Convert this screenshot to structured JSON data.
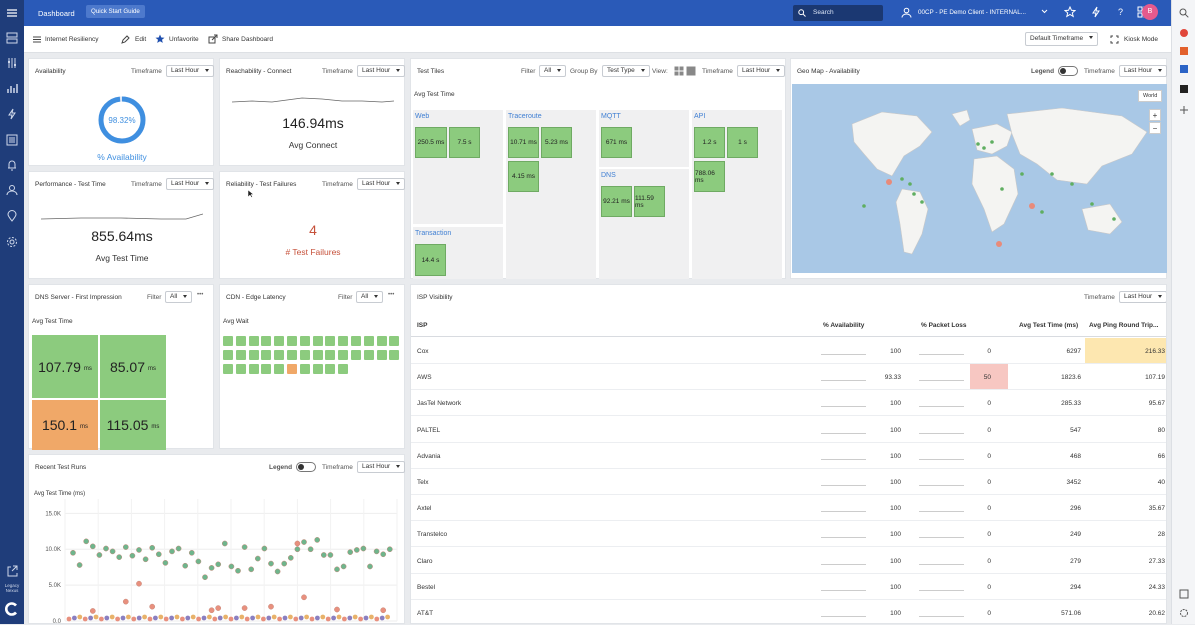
{
  "header": {
    "app_title": "Dashboard",
    "quick_start_label": "Quick Start Guide",
    "search_placeholder": "Search",
    "account_label": "00CP - PE Demo Client - INTERNAL...",
    "avatar_initial": "B",
    "brand_color": "#2a5ab8"
  },
  "toolbar": {
    "dashboard_name": "Internet Resiliency",
    "edit_label": "Edit",
    "unfavorite_label": "Unfavorite",
    "share_label": "Share Dashboard",
    "default_timeframe_label": "Default Timeframe",
    "kiosk_label": "Kiosk Mode"
  },
  "common": {
    "timeframe_label": "Timeframe",
    "timeframe_value": "Last Hour",
    "filter_label": "Filter",
    "filter_value": "All",
    "legend_label": "Legend",
    "more_glyph": "•••"
  },
  "availability": {
    "title": "Availability",
    "value": "98.32%",
    "value_fraction": 0.9832,
    "label": "% Availability"
  },
  "reachability": {
    "title": "Reachability - Connect",
    "value": "146.94ms",
    "label": "Avg Connect"
  },
  "performance": {
    "title": "Performance - Test Time",
    "value": "855.64ms",
    "label": "Avg Test Time"
  },
  "reliability": {
    "title": "Reliability - Test Failures",
    "value": "4",
    "label": "# Test Failures"
  },
  "test_tiles": {
    "title": "Test Tiles",
    "group_by_label": "Group By",
    "group_by_value": "Test Type",
    "view_label": "View:",
    "metric_label": "Avg Test Time",
    "groups": [
      {
        "name": "Web",
        "tiles": [
          "250.5 ms",
          "7.5 s"
        ]
      },
      {
        "name": "Traceroute",
        "tiles": [
          "10.71 ms",
          "5.23 ms",
          "4.15 ms"
        ]
      },
      {
        "name": "MQTT",
        "tiles": [
          "671 ms"
        ]
      },
      {
        "name": "API",
        "tiles": [
          "1.2 s",
          "1 s",
          "788.06 ms"
        ]
      },
      {
        "name": "DNS",
        "tiles": [
          "92.21 ms",
          "111.59 ms"
        ]
      },
      {
        "name": "Transaction",
        "tiles": [
          "14.4 s"
        ]
      }
    ]
  },
  "geo_map": {
    "title": "Geo Map - Availability",
    "region_button": "World",
    "zoom_in": "+",
    "zoom_out": "−"
  },
  "dns_server": {
    "title": "DNS Server - First Impression",
    "metric_label": "Avg Test Time",
    "unit": "ms",
    "tiles": [
      {
        "value": "107.79",
        "color": "#8ccb7e"
      },
      {
        "value": "85.07",
        "color": "#8ccb7e"
      },
      {
        "value": "150.1",
        "color": "#f0a868"
      },
      {
        "value": "115.05",
        "color": "#8ccb7e"
      }
    ]
  },
  "cdn": {
    "title": "CDN - Edge Latency",
    "metric_label": "Avg Wait",
    "square_count": 38,
    "orange_index": 33
  },
  "isp": {
    "title": "ISP Visibility",
    "columns": [
      "ISP",
      "% Availability",
      "% Packet Loss",
      "Avg Test Time (ms)",
      "Avg Ping Round Trip..."
    ],
    "rows": [
      {
        "isp": "Cox",
        "availability": "100",
        "packet_loss": "0",
        "test_time": "6297",
        "ping": "216.33",
        "ping_highlight": true,
        "loss_highlight": false
      },
      {
        "isp": "AWS",
        "availability": "93.33",
        "packet_loss": "50",
        "test_time": "1823.6",
        "ping": "107.19",
        "ping_highlight": false,
        "loss_highlight": true
      },
      {
        "isp": "JasTel Network",
        "availability": "100",
        "packet_loss": "0",
        "test_time": "285.33",
        "ping": "95.67",
        "ping_highlight": false,
        "loss_highlight": false
      },
      {
        "isp": "PALTEL",
        "availability": "100",
        "packet_loss": "0",
        "test_time": "547",
        "ping": "80",
        "ping_highlight": false,
        "loss_highlight": false
      },
      {
        "isp": "Advania",
        "availability": "100",
        "packet_loss": "0",
        "test_time": "468",
        "ping": "66",
        "ping_highlight": false,
        "loss_highlight": false
      },
      {
        "isp": "Telx",
        "availability": "100",
        "packet_loss": "0",
        "test_time": "3452",
        "ping": "40",
        "ping_highlight": false,
        "loss_highlight": false
      },
      {
        "isp": "Axtel",
        "availability": "100",
        "packet_loss": "0",
        "test_time": "296",
        "ping": "35.67",
        "ping_highlight": false,
        "loss_highlight": false
      },
      {
        "isp": "Transtelco",
        "availability": "100",
        "packet_loss": "0",
        "test_time": "249",
        "ping": "28",
        "ping_highlight": false,
        "loss_highlight": false
      },
      {
        "isp": "Claro",
        "availability": "100",
        "packet_loss": "0",
        "test_time": "279",
        "ping": "27.33",
        "ping_highlight": false,
        "loss_highlight": false
      },
      {
        "isp": "Bestel",
        "availability": "100",
        "packet_loss": "0",
        "test_time": "294",
        "ping": "24.33",
        "ping_highlight": false,
        "loss_highlight": false
      },
      {
        "isp": "AT&T",
        "availability": "100",
        "packet_loss": "0",
        "test_time": "571.06",
        "ping": "20.62",
        "ping_highlight": false,
        "loss_highlight": false
      }
    ]
  },
  "recent_runs": {
    "title": "Recent Test Runs",
    "ylabel": "Avg Test Time (ms)",
    "yticks": [
      "15.0K",
      "10.0K",
      "5.0K",
      "0.0"
    ]
  },
  "sidebar": {
    "legacy_label": "Legacy Nexus"
  },
  "chart_data": {
    "type": "scatter",
    "title": "Recent Test Runs",
    "ylabel": "Avg Test Time (ms)",
    "ylim": [
      0,
      17000
    ],
    "yticks": [
      0,
      5000,
      10000,
      15000
    ],
    "series": [
      {
        "values": [
          [
            0,
            9500
          ],
          [
            1,
            7800
          ],
          [
            2,
            11100
          ],
          [
            3,
            10400
          ],
          [
            4,
            9200
          ],
          [
            5,
            10100
          ],
          [
            6,
            9700
          ],
          [
            7,
            8900
          ],
          [
            8,
            10300
          ],
          [
            9,
            9100
          ],
          [
            10,
            9900
          ],
          [
            11,
            8600
          ],
          [
            12,
            10200
          ],
          [
            13,
            9300
          ],
          [
            14,
            8100
          ],
          [
            15,
            9700
          ],
          [
            16,
            10100
          ],
          [
            17,
            7700
          ],
          [
            18,
            9500
          ],
          [
            19,
            8300
          ],
          [
            20,
            6100
          ],
          [
            21,
            7400
          ],
          [
            22,
            7900
          ],
          [
            23,
            10800
          ],
          [
            24,
            7600
          ],
          [
            25,
            7000
          ],
          [
            26,
            10300
          ],
          [
            27,
            7200
          ],
          [
            28,
            8700
          ],
          [
            29,
            10100
          ],
          [
            30,
            8000
          ],
          [
            31,
            6900
          ],
          [
            32,
            8000
          ],
          [
            33,
            8800
          ],
          [
            34,
            10000
          ],
          [
            35,
            11000
          ],
          [
            36,
            10000
          ],
          [
            37,
            11300
          ],
          [
            38,
            9200
          ],
          [
            39,
            9200
          ],
          [
            40,
            7200
          ],
          [
            41,
            7600
          ],
          [
            42,
            9600
          ],
          [
            43,
            9900
          ],
          [
            44,
            10100
          ],
          [
            45,
            7600
          ],
          [
            46,
            9700
          ],
          [
            47,
            9300
          ],
          [
            48,
            10000
          ]
        ]
      },
      {
        "values": [
          [
            14,
            17800
          ],
          [
            10,
            5200
          ],
          [
            34,
            10800
          ],
          [
            8,
            2700
          ],
          [
            3,
            1400
          ],
          [
            21,
            1500
          ],
          [
            47,
            1500
          ],
          [
            22,
            1800
          ],
          [
            30,
            2000
          ],
          [
            40,
            1600
          ],
          [
            26,
            1800
          ],
          [
            35,
            3300
          ],
          [
            12,
            2000
          ]
        ]
      }
    ]
  }
}
